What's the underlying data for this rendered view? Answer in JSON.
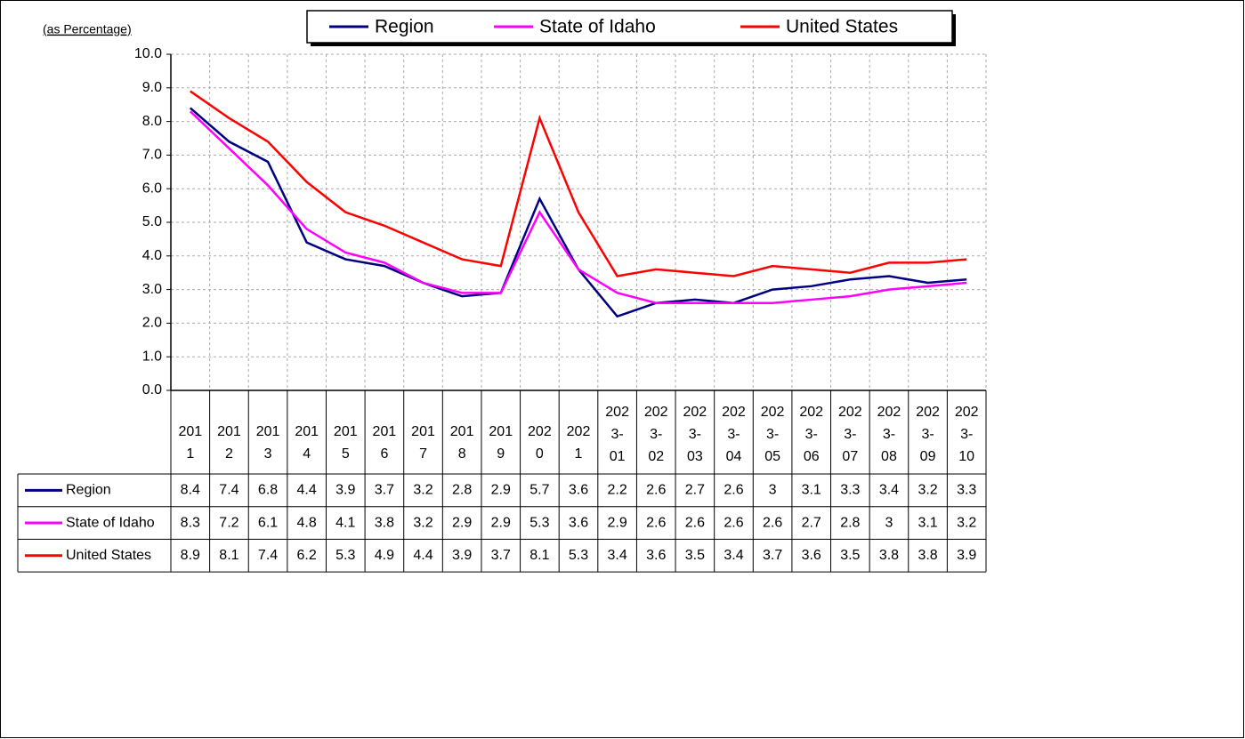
{
  "chart_data": {
    "type": "line",
    "y_label": "(as Percentage)",
    "categories": [
      "2011",
      "2012",
      "2013",
      "2014",
      "2015",
      "2016",
      "2017",
      "2018",
      "2019",
      "2020",
      "2021",
      "2023-01",
      "2023-02",
      "2023-03",
      "2023-04",
      "2023-05",
      "2023-06",
      "2023-07",
      "2023-08",
      "2023-09",
      "2023-10"
    ],
    "series": [
      {
        "name": "Region",
        "color": "#000080",
        "values": [
          8.4,
          7.4,
          6.8,
          4.4,
          3.9,
          3.7,
          3.2,
          2.8,
          2.9,
          5.7,
          3.6,
          2.2,
          2.6,
          2.7,
          2.6,
          3,
          3.1,
          3.3,
          3.4,
          3.2,
          3.3
        ]
      },
      {
        "name": "State of Idaho",
        "color": "#ff00ff",
        "values": [
          8.3,
          7.2,
          6.1,
          4.8,
          4.1,
          3.8,
          3.2,
          2.9,
          2.9,
          5.3,
          3.6,
          2.9,
          2.6,
          2.6,
          2.6,
          2.6,
          2.7,
          2.8,
          3,
          3.1,
          3.2
        ]
      },
      {
        "name": "United States",
        "color": "#ff0000",
        "values": [
          8.9,
          8.1,
          7.4,
          6.2,
          5.3,
          4.9,
          4.4,
          3.9,
          3.7,
          8.1,
          5.3,
          3.4,
          3.6,
          3.5,
          3.4,
          3.7,
          3.6,
          3.5,
          3.8,
          3.8,
          3.9
        ]
      }
    ],
    "ylim": [
      0,
      10
    ],
    "yticks": [
      {
        "value": 0,
        "label": "0.0"
      },
      {
        "value": 1,
        "label": "1.0"
      },
      {
        "value": 2,
        "label": "2.0"
      },
      {
        "value": 3,
        "label": "3.0"
      },
      {
        "value": 4,
        "label": "4.0"
      },
      {
        "value": 5,
        "label": "5.0"
      },
      {
        "value": 6,
        "label": "6.0"
      },
      {
        "value": 7,
        "label": "7.0"
      },
      {
        "value": 8,
        "label": "8.0"
      },
      {
        "value": 9,
        "label": "9.0"
      },
      {
        "value": 10,
        "label": "10.0"
      }
    ],
    "grid": true,
    "legend": "top"
  }
}
